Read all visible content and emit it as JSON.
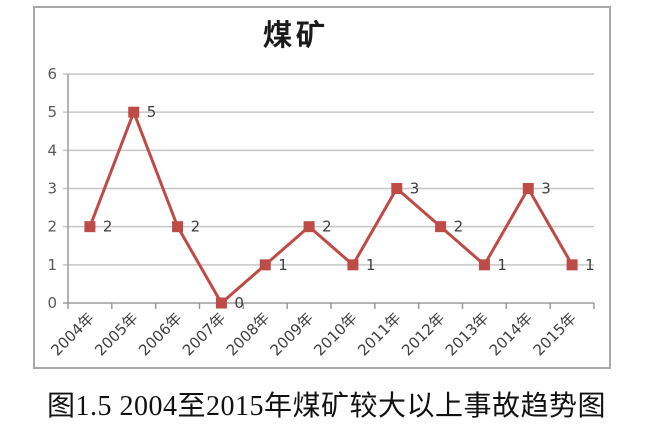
{
  "caption": "图1.5 2004至2015年煤矿较大以上事故趋势图",
  "chart_data": {
    "type": "line",
    "title": "煤矿",
    "categories": [
      "2004年",
      "2005年",
      "2006年",
      "2007年",
      "2008年",
      "2009年",
      "2010年",
      "2011年",
      "2012年",
      "2013年",
      "2014年",
      "2015年"
    ],
    "series": [
      {
        "name": "煤矿",
        "values": [
          2,
          5,
          2,
          0,
          1,
          2,
          1,
          3,
          2,
          1,
          3,
          1
        ]
      }
    ],
    "data_labels": [
      2,
      5,
      2,
      0,
      1,
      2,
      1,
      3,
      2,
      1,
      3,
      1
    ],
    "xlabel": "",
    "ylabel": "",
    "ylim": [
      0,
      6
    ],
    "yticks": [
      0,
      1,
      2,
      3,
      4,
      5,
      6
    ],
    "grid": true,
    "legend": false,
    "marker": "square",
    "colors": {
      "series": "#bf4b47",
      "gridline": "#c6c6c6",
      "axis": "#9b9b9b",
      "tick_label": "#595959",
      "x_label": "#3f3f3f",
      "data_label": "#3f3f3f",
      "border": "#a8a8a8",
      "title": "#1a1a1a",
      "caption": "#111111"
    }
  }
}
